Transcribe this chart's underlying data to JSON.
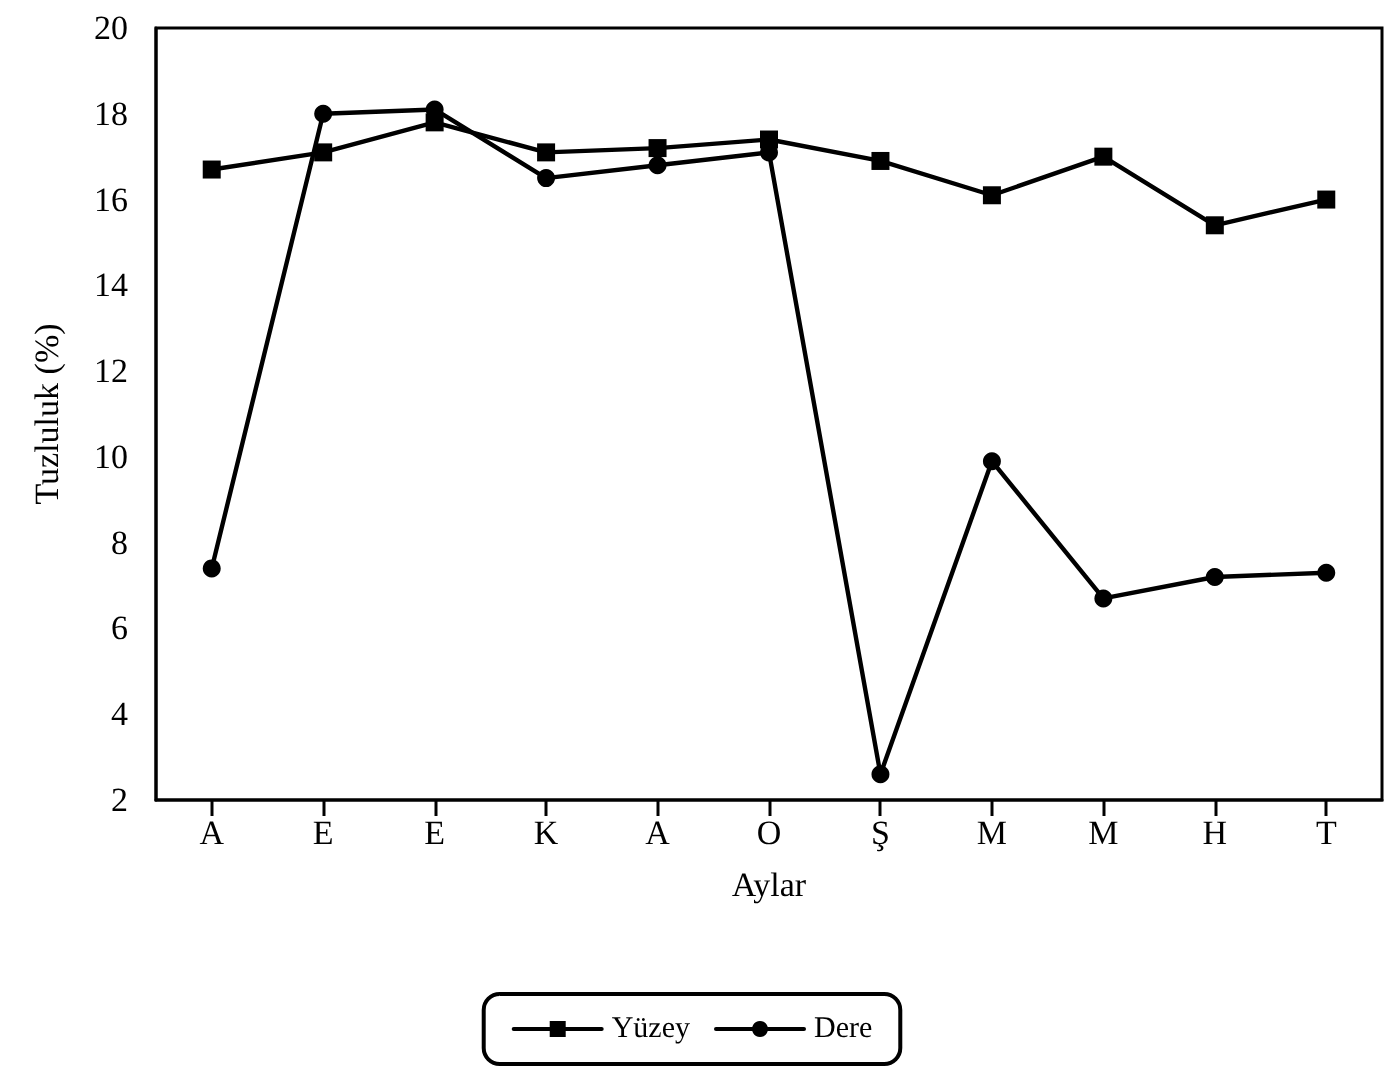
{
  "chart_data": {
    "type": "line",
    "xlabel": "Aylar",
    "ylabel": "Tuzluluk (%)",
    "categories": [
      "A",
      "E",
      "E",
      "K",
      "A",
      "O",
      "Ş",
      "M",
      "M",
      "H",
      "T"
    ],
    "series": [
      {
        "name": "Yüzey",
        "color": "#000000",
        "marker": "square",
        "values": [
          16.7,
          17.1,
          17.8,
          17.1,
          17.2,
          17.4,
          16.9,
          16.1,
          17.0,
          15.4,
          16.0
        ]
      },
      {
        "name": "Dere",
        "color": "#000000",
        "marker": "circle",
        "values": [
          7.4,
          18.0,
          18.1,
          16.5,
          16.8,
          17.1,
          2.6,
          9.9,
          6.7,
          7.2,
          7.3
        ]
      }
    ],
    "ylim": [
      2,
      20
    ],
    "yticks": [
      2,
      4,
      6,
      8,
      10,
      12,
      14,
      16,
      18,
      20
    ],
    "grid": false,
    "legend": "bottom"
  }
}
